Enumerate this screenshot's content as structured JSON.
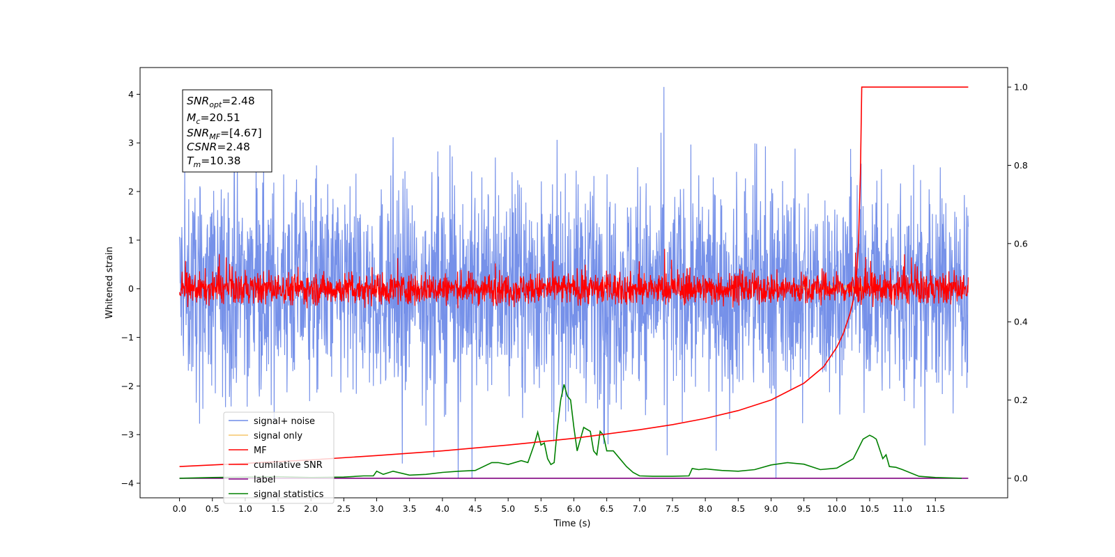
{
  "chart_data": {
    "type": "line",
    "xlabel": "Time (s)",
    "ylabel": "Whitened strain",
    "xlim": [
      -0.6,
      12.6
    ],
    "ylim_left": [
      -4.3,
      4.55
    ],
    "ylim_right": [
      -0.05,
      1.05
    ],
    "x_ticks": [
      "0.0",
      "0.5",
      "1.0",
      "1.5",
      "2.0",
      "2.5",
      "3.0",
      "3.5",
      "4.0",
      "4.5",
      "5.0",
      "5.5",
      "6.0",
      "6.5",
      "7.0",
      "7.5",
      "8.0",
      "8.5",
      "9.0",
      "9.5",
      "10.0",
      "10.5",
      "11.0",
      "11.5"
    ],
    "y_ticks_left": [
      "−4",
      "−3",
      "−2",
      "−1",
      "0",
      "1",
      "2",
      "3",
      "4"
    ],
    "y_ticks_right": [
      "0.0",
      "0.2",
      "0.4",
      "0.6",
      "0.8",
      "1.0"
    ],
    "legend": {
      "placement": "lower-left",
      "entries": [
        {
          "label": "signal+ noise",
          "color": "#6f8be8"
        },
        {
          "label": "signal only",
          "color": "#f5c56a"
        },
        {
          "label": "MF",
          "color": "#ff0000"
        },
        {
          "label": "cumilative SNR",
          "color": "#ff0000"
        },
        {
          "label": "label",
          "color": "#800080"
        },
        {
          "label": "signal statistics",
          "color": "#008000"
        }
      ]
    },
    "annotations": {
      "snr_opt": {
        "symbol": "SNR",
        "sub": "opt",
        "value": "=2.48"
      },
      "mc": {
        "symbol": "M",
        "sub": "c",
        "value": "=20.51"
      },
      "snr_mf": {
        "symbol": "SNR",
        "sub": "MF",
        "value": "=[4.67]"
      },
      "csnr": {
        "symbol": "CSNR",
        "sub": "",
        "value": "=2.48"
      },
      "tm": {
        "symbol": "T",
        "sub": "m",
        "value": "=10.38"
      }
    },
    "series": [
      {
        "name": "signal+ noise",
        "axis": "left",
        "color": "#6f8be8",
        "kind": "noise",
        "x_range": [
          0,
          12
        ],
        "amplitude_range": [
          -3.9,
          4.15
        ]
      },
      {
        "name": "signal only",
        "axis": "left",
        "color": "#f5c56a",
        "kind": "chirp",
        "merger_time": 10.38
      },
      {
        "name": "MF",
        "axis": "left",
        "color": "#ff0000",
        "kind": "noise",
        "x_range": [
          0,
          12
        ],
        "amplitude_range": [
          -0.4,
          1.0
        ]
      },
      {
        "name": "cumilative SNR",
        "axis": "right",
        "color": "#ff0000",
        "x": [
          0,
          1,
          2,
          3,
          4,
          5,
          6,
          7,
          7.5,
          8,
          8.5,
          9,
          9.5,
          9.8,
          10.0,
          10.1,
          10.2,
          10.25,
          10.3,
          10.33,
          10.36,
          10.38,
          11.0,
          12.0
        ],
        "y": [
          0.03,
          0.038,
          0.047,
          0.058,
          0.07,
          0.085,
          0.102,
          0.124,
          0.137,
          0.153,
          0.173,
          0.2,
          0.243,
          0.285,
          0.335,
          0.37,
          0.42,
          0.455,
          0.52,
          0.6,
          0.78,
          1.0,
          1.0,
          1.0
        ]
      },
      {
        "name": "label",
        "axis": "right",
        "color": "#800080",
        "x": [
          0,
          12
        ],
        "y": [
          0.0,
          0.0
        ]
      },
      {
        "name": "signal statistics",
        "axis": "right",
        "color": "#008000",
        "x": [
          0,
          0.5,
          1.0,
          1.5,
          2.0,
          2.5,
          2.8,
          2.95,
          3.0,
          3.1,
          3.25,
          3.5,
          3.75,
          4.0,
          4.25,
          4.5,
          4.75,
          4.85,
          5.0,
          5.2,
          5.3,
          5.4,
          5.45,
          5.5,
          5.55,
          5.6,
          5.65,
          5.7,
          5.75,
          5.8,
          5.85,
          5.9,
          5.95,
          6.0,
          6.05,
          6.15,
          6.25,
          6.3,
          6.35,
          6.4,
          6.45,
          6.5,
          6.6,
          6.7,
          6.8,
          6.9,
          7.0,
          7.2,
          7.5,
          7.75,
          7.8,
          7.9,
          8.0,
          8.25,
          8.5,
          8.75,
          9.0,
          9.25,
          9.5,
          9.75,
          10.0,
          10.25,
          10.4,
          10.5,
          10.55,
          10.6,
          10.7,
          10.75,
          10.8,
          10.9,
          11.0,
          11.25,
          11.5,
          11.9
        ],
        "y": [
          0.0,
          0.002,
          0.003,
          0.004,
          0.002,
          0.003,
          0.006,
          0.006,
          0.018,
          0.01,
          0.018,
          0.008,
          0.01,
          0.015,
          0.018,
          0.02,
          0.04,
          0.04,
          0.035,
          0.045,
          0.04,
          0.088,
          0.118,
          0.085,
          0.09,
          0.05,
          0.035,
          0.04,
          0.13,
          0.2,
          0.24,
          0.21,
          0.2,
          0.13,
          0.07,
          0.13,
          0.12,
          0.07,
          0.06,
          0.12,
          0.11,
          0.07,
          0.07,
          0.05,
          0.03,
          0.015,
          0.006,
          0.005,
          0.005,
          0.006,
          0.025,
          0.022,
          0.024,
          0.02,
          0.018,
          0.022,
          0.034,
          0.04,
          0.036,
          0.022,
          0.026,
          0.05,
          0.1,
          0.11,
          0.106,
          0.1,
          0.05,
          0.06,
          0.03,
          0.028,
          0.022,
          0.005,
          0.002,
          0.0
        ]
      }
    ]
  }
}
